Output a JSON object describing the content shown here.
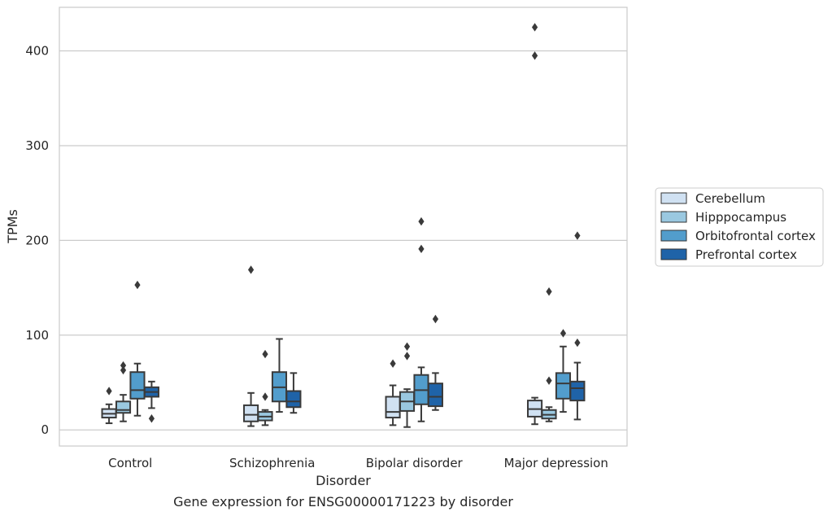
{
  "chart_data": {
    "type": "box",
    "title": "",
    "caption": "Gene expression for ENSG00000171223 by disorder",
    "xlabel": "Disorder",
    "ylabel": "TPMs",
    "ylim": [
      -17,
      446
    ],
    "yticks": [
      0,
      100,
      200,
      300,
      400
    ],
    "grid": "horizontal",
    "legend_position": "right",
    "categories": [
      "Control",
      "Schizophrenia",
      "Bipolar disorder",
      "Major depression"
    ],
    "series": [
      {
        "name": "Cerebellum",
        "color": "#d0e1f2",
        "boxes": [
          {
            "whisker_low": 7,
            "q1": 13,
            "median": 17,
            "q3": 22,
            "whisker_high": 27,
            "outliers": [
              41
            ]
          },
          {
            "whisker_low": 4,
            "q1": 9,
            "median": 16,
            "q3": 26,
            "whisker_high": 39,
            "outliers": [
              169
            ]
          },
          {
            "whisker_low": 5,
            "q1": 13,
            "median": 19,
            "q3": 35,
            "whisker_high": 47,
            "outliers": [
              70
            ]
          },
          {
            "whisker_low": 6,
            "q1": 14,
            "median": 22,
            "q3": 31,
            "whisker_high": 34,
            "outliers": [
              395,
              425
            ]
          }
        ]
      },
      {
        "name": "Hipppocampus",
        "color": "#9ac8e0",
        "boxes": [
          {
            "whisker_low": 9,
            "q1": 18,
            "median": 21,
            "q3": 30,
            "whisker_high": 37,
            "outliers": [
              63,
              68
            ]
          },
          {
            "whisker_low": 5,
            "q1": 10,
            "median": 14,
            "q3": 19,
            "whisker_high": 21,
            "outliers": [
              35,
              80
            ]
          },
          {
            "whisker_low": 3,
            "q1": 20,
            "median": 30,
            "q3": 40,
            "whisker_high": 43,
            "outliers": [
              78,
              88
            ]
          },
          {
            "whisker_low": 9,
            "q1": 12,
            "median": 16,
            "q3": 21,
            "whisker_high": 24,
            "outliers": [
              52,
              146
            ]
          }
        ]
      },
      {
        "name": "Orbitofrontal cortex",
        "color": "#529dcc",
        "boxes": [
          {
            "whisker_low": 15,
            "q1": 33,
            "median": 42,
            "q3": 61,
            "whisker_high": 70,
            "outliers": [
              153
            ]
          },
          {
            "whisker_low": 19,
            "q1": 30,
            "median": 45,
            "q3": 61,
            "whisker_high": 96,
            "outliers": []
          },
          {
            "whisker_low": 9,
            "q1": 27,
            "median": 42,
            "q3": 58,
            "whisker_high": 66,
            "outliers": [
              191,
              220
            ]
          },
          {
            "whisker_low": 19,
            "q1": 33,
            "median": 49,
            "q3": 60,
            "whisker_high": 88,
            "outliers": [
              102
            ]
          }
        ]
      },
      {
        "name": "Prefrontal cortex",
        "color": "#1f63a8",
        "boxes": [
          {
            "whisker_low": 23,
            "q1": 35,
            "median": 40,
            "q3": 45,
            "whisker_high": 51,
            "outliers": [
              12
            ]
          },
          {
            "whisker_low": 18,
            "q1": 24,
            "median": 30,
            "q3": 41,
            "whisker_high": 60,
            "outliers": []
          },
          {
            "whisker_low": 21,
            "q1": 25,
            "median": 35,
            "q3": 49,
            "whisker_high": 60,
            "outliers": [
              117
            ]
          },
          {
            "whisker_low": 11,
            "q1": 31,
            "median": 44,
            "q3": 51,
            "whisker_high": 71,
            "outliers": [
              92,
              205
            ]
          }
        ]
      }
    ]
  }
}
